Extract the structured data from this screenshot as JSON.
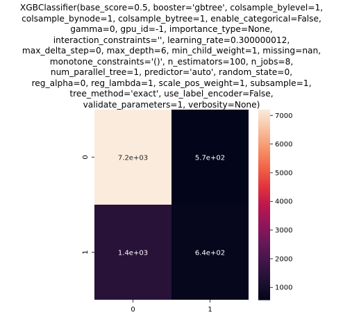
{
  "chart_data": {
    "type": "heatmap",
    "title_lines": [
      "XGBClassifier(base_score=0.5, booster='gbtree', colsample_bylevel=1,",
      "colsample_bynode=1, colsample_bytree=1, enable_categorical=False,",
      "gamma=0, gpu_id=-1, importance_type=None,",
      "interaction_constraints='', learning_rate=0.300000012,",
      "max_delta_step=0, max_depth=6, min_child_weight=1, missing=nan,",
      "monotone_constraints='()', n_estimators=100, n_jobs=8,",
      "num_parallel_tree=1, predictor='auto', random_state=0,",
      "reg_alpha=0, reg_lambda=1, scale_pos_weight=1, subsample=1,",
      "tree_method='exact', use_label_encoder=False,",
      "validate_parameters=1, verbosity=None)"
    ],
    "x_categories": [
      "0",
      "1"
    ],
    "y_categories": [
      "0",
      "1"
    ],
    "values": [
      [
        7200,
        570
      ],
      [
        1400,
        640
      ]
    ],
    "annotations": [
      [
        "7.2e+03",
        "5.7e+02"
      ],
      [
        "1.4e+03",
        "6.4e+02"
      ]
    ],
    "colorbar": {
      "min": 570,
      "max": 7200,
      "ticks": [
        1000,
        2000,
        3000,
        4000,
        5000,
        6000,
        7000
      ],
      "tick_labels": [
        "1000",
        "2000",
        "3000",
        "4000",
        "5000",
        "6000",
        "7000"
      ],
      "colormap": "rocket"
    }
  }
}
